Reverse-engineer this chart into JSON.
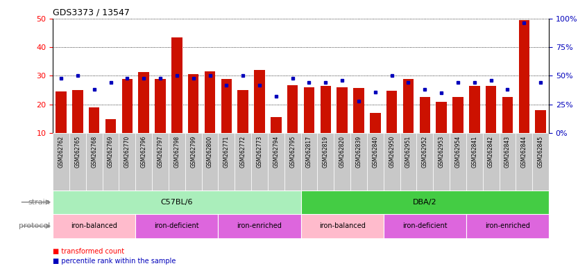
{
  "title": "GDS3373 / 13547",
  "samples": [
    "GSM262762",
    "GSM262765",
    "GSM262768",
    "GSM262769",
    "GSM262770",
    "GSM262796",
    "GSM262797",
    "GSM262798",
    "GSM262799",
    "GSM262800",
    "GSM262771",
    "GSM262772",
    "GSM262773",
    "GSM262794",
    "GSM262795",
    "GSM262817",
    "GSM262819",
    "GSM262820",
    "GSM262839",
    "GSM262840",
    "GSM262950",
    "GSM262951",
    "GSM262952",
    "GSM262953",
    "GSM262954",
    "GSM262841",
    "GSM262842",
    "GSM262843",
    "GSM262844",
    "GSM262845"
  ],
  "red_values": [
    24.5,
    25.0,
    19.0,
    14.8,
    29.0,
    31.2,
    29.0,
    43.5,
    30.5,
    31.5,
    29.0,
    25.0,
    32.0,
    15.5,
    26.8,
    26.0,
    26.5,
    26.0,
    25.8,
    17.0,
    24.8,
    29.0,
    22.5,
    21.0,
    22.5,
    26.5,
    26.5,
    22.5,
    49.5,
    18.0
  ],
  "blue_pct": [
    48,
    50,
    38,
    44,
    48,
    48,
    48,
    50,
    48,
    50,
    42,
    50,
    42,
    32,
    48,
    44,
    44,
    46,
    28,
    36,
    50,
    44,
    38,
    35,
    44,
    44,
    46,
    38,
    96,
    44
  ],
  "ylim_left": [
    10,
    50
  ],
  "ylim_right": [
    0,
    100
  ],
  "bar_color": "#CC1100",
  "blue_color": "#0000BB",
  "yticks_left": [
    10,
    20,
    30,
    40,
    50
  ],
  "yticks_right": [
    0,
    25,
    50,
    75,
    100
  ],
  "ytick_labels_right": [
    "0%",
    "25%",
    "50%",
    "75%",
    "100%"
  ],
  "strain_groups": [
    {
      "label": "C57BL/6",
      "start": 0,
      "end": 14,
      "color": "#AAEEBB"
    },
    {
      "label": "DBA/2",
      "start": 15,
      "end": 29,
      "color": "#44CC44"
    }
  ],
  "protocol_groups": [
    {
      "label": "iron-balanced",
      "start": 0,
      "end": 4,
      "color": "#FFBBCC"
    },
    {
      "label": "iron-deficient",
      "start": 5,
      "end": 9,
      "color": "#DD66DD"
    },
    {
      "label": "iron-enriched",
      "start": 10,
      "end": 14,
      "color": "#DD66DD"
    },
    {
      "label": "iron-balanced",
      "start": 15,
      "end": 19,
      "color": "#FFBBCC"
    },
    {
      "label": "iron-deficient",
      "start": 20,
      "end": 24,
      "color": "#DD66DD"
    },
    {
      "label": "iron-enriched",
      "start": 25,
      "end": 29,
      "color": "#DD66DD"
    }
  ],
  "xtick_bg_color": "#C8C8C8",
  "legend_red_text": "transformed count",
  "legend_blue_text": "percentile rank within the sample"
}
